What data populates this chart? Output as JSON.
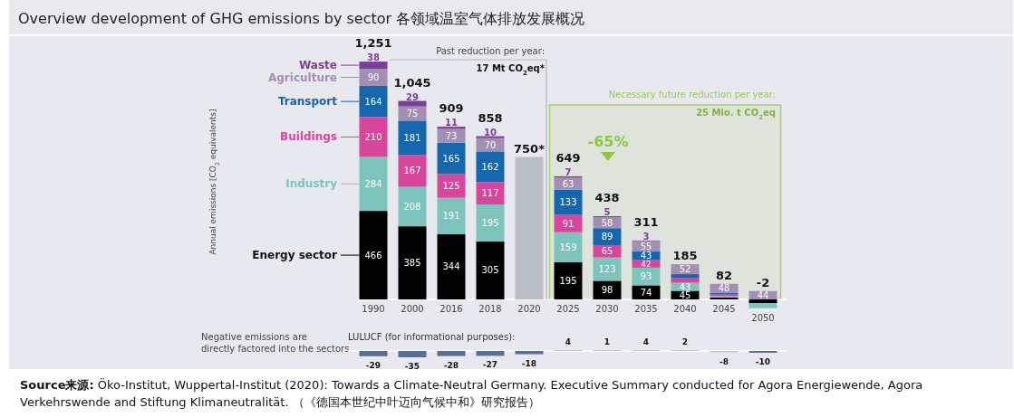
{
  "chart_data": [
    {
      "type": "bar",
      "stacked": true,
      "title": "Overview development of GHG emissions by sector 各领域温室气体排放发展概况",
      "ylabel": "Annual emissions [CO$_{2}$ equivalents]",
      "categories": [
        "1990",
        "2000",
        "2016",
        "2018",
        "2020",
        "2025",
        "2030",
        "2035",
        "2040",
        "2045",
        "2050"
      ],
      "legend": "left",
      "data_labels": true,
      "series": [
        {
          "name": "Energy sector",
          "color": "#000000",
          "values": [
            466,
            385,
            344,
            305,
            null,
            195,
            98,
            74,
            45,
            10,
            -20
          ],
          "value_labels": [
            "466",
            "385",
            "344",
            "305",
            null,
            "195",
            "98",
            "74",
            "45",
            null,
            null
          ]
        },
        {
          "name": "Industry",
          "color": "#7cc4bc",
          "values": [
            284,
            208,
            191,
            195,
            null,
            159,
            123,
            93,
            43,
            8,
            -26
          ],
          "value_labels": [
            "284",
            "208",
            "191",
            "195",
            null,
            "159",
            "123",
            "93",
            "43",
            null,
            null
          ]
        },
        {
          "name": "Buildings",
          "color": "#d9459a",
          "values": [
            210,
            167,
            125,
            117,
            null,
            91,
            65,
            42,
            24,
            8,
            null
          ],
          "value_labels": [
            "210",
            "167",
            "125",
            "117",
            null,
            "91",
            "65",
            "42",
            null,
            null,
            null
          ]
        },
        {
          "name": "Transport",
          "color": "#1466ad",
          "values": [
            164,
            181,
            165,
            162,
            null,
            133,
            89,
            43,
            21,
            8,
            null
          ],
          "value_labels": [
            "164",
            "181",
            "165",
            "162",
            null,
            "133",
            "89",
            "43",
            null,
            null,
            null
          ]
        },
        {
          "name": "Agriculture",
          "color": "#a28fb3",
          "values": [
            90,
            75,
            73,
            70,
            null,
            63,
            58,
            55,
            52,
            48,
            44
          ],
          "value_labels": [
            "90",
            "75",
            "73",
            "70",
            null,
            "63",
            "58",
            "55",
            "52",
            "48",
            "44"
          ]
        },
        {
          "name": "Waste",
          "color": "#7b3f98",
          "values": [
            38,
            29,
            11,
            10,
            null,
            7,
            5,
            3,
            null,
            null,
            null
          ],
          "value_labels": [
            "38",
            "29",
            "11",
            "10",
            null,
            "7",
            "5",
            "3",
            null,
            null,
            null
          ]
        },
        {
          "color": "#b9bec6",
          "values": [
            null,
            null,
            null,
            null,
            750,
            null,
            null,
            null,
            null,
            null,
            null
          ],
          "value_labels": [
            null,
            null,
            null,
            null,
            "750*",
            null,
            null,
            null,
            null,
            null,
            null
          ]
        }
      ],
      "bands": [
        {
          "axis": "x",
          "from": "2025",
          "to": "2050",
          "color": "#a6d06a"
        }
      ],
      "totals": [
        "1,251",
        "1,045",
        "909",
        "858",
        null,
        "649",
        "438",
        "311",
        "185",
        "82",
        "-2"
      ],
      "annotations": [
        "Past reduction per year:",
        "17 Mt CO$_{2}$eq*",
        "Necessary future reduction per year:",
        "25 Mio. t CO$_{2}$eq",
        "-65%",
        "**Source来源:** Öko-Institut, Wuppertal-Institut (2020): Towards a Climate-Neutral Germany. Executive Summary conducted for Agora Energiewende, Agora Verkehrswende and Stiftung Klimaneutralität. （《德国本世纪中叶迈向气候中和》研究报告）"
      ]
    },
    {
      "type": "bar",
      "title": "LULUCF (for informational purposes):",
      "categories": [
        null,
        null,
        null,
        null,
        null,
        null,
        null,
        null,
        null,
        null,
        null
      ],
      "values": [
        -29,
        -35,
        -28,
        -27,
        -18,
        4,
        1,
        4,
        2,
        -8,
        -10
      ],
      "colors": [
        "#5a6e94",
        "#5a6e94",
        "#5a6e94",
        "#5a6e94",
        "#5a6e94",
        "#c4c8d4",
        "#c4c8d4",
        "#c4c8d4",
        "#c4c8d4",
        "#c4c8d4",
        "#5a6e94"
      ],
      "data_labels": true,
      "annotations": [
        "Negative emissions are directly factored into the sectors."
      ]
    }
  ]
}
